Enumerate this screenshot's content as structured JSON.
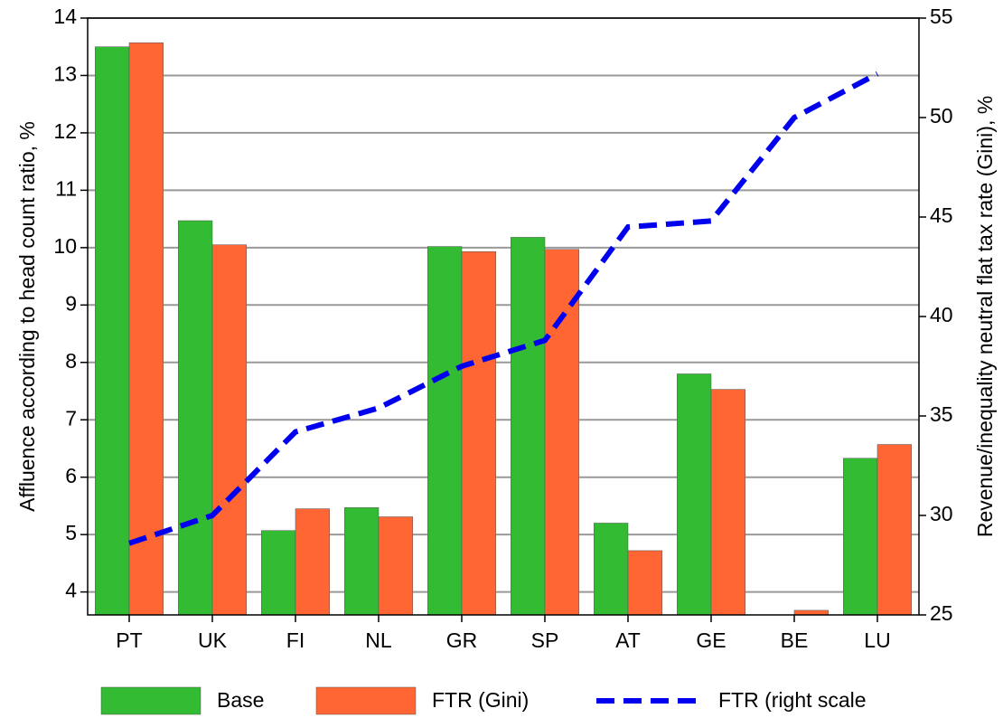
{
  "chart_data": {
    "type": "bar",
    "y_label": "Affluence according to head count ratio, %",
    "y2_label": "Revenue/inequality neutral flat tax rate (Gini), %",
    "categories": [
      "PT",
      "UK",
      "FI",
      "NL",
      "GR",
      "SP",
      "AT",
      "GE",
      "BE",
      "LU"
    ],
    "series": [
      {
        "name": "Base",
        "type": "bar",
        "color": "#33bb33",
        "values": [
          13.5,
          10.47,
          5.07,
          5.47,
          10.02,
          10.18,
          5.2,
          7.8,
          null,
          6.33
        ]
      },
      {
        "name": "FTR (Gini)",
        "type": "bar",
        "color": "#ff6633",
        "values": [
          13.57,
          10.05,
          5.45,
          5.31,
          9.93,
          9.97,
          4.72,
          7.53,
          3.68,
          6.57
        ]
      },
      {
        "name": "FTR (right scale",
        "type": "line",
        "axis": "y2",
        "color": "#0000ee",
        "values": [
          28.6,
          30.0,
          34.2,
          35.4,
          37.5,
          38.8,
          44.5,
          44.8,
          50.0,
          52.2
        ]
      }
    ],
    "ylim": [
      3.6,
      14
    ],
    "yticks": [
      4,
      5,
      6,
      7,
      8,
      9,
      10,
      11,
      12,
      13,
      14
    ],
    "y2lim": [
      25,
      55
    ],
    "y2ticks": [
      25,
      30,
      35,
      40,
      45,
      50,
      55
    ],
    "grid": true,
    "legend": "bottom"
  }
}
